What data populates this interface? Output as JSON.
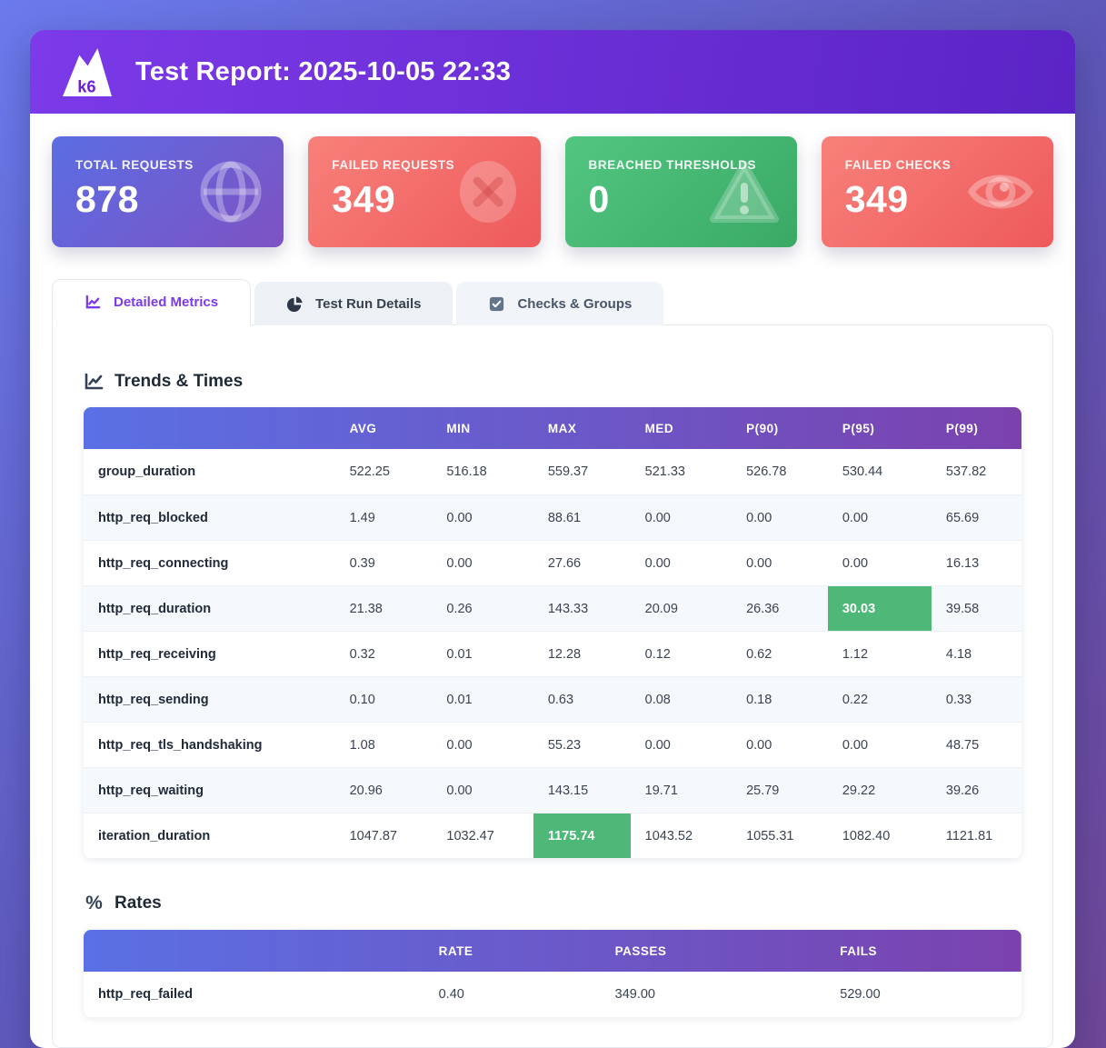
{
  "header": {
    "logo_text": "k6",
    "title": "Test Report: 2025-10-05 22:33"
  },
  "stats": [
    {
      "label": "TOTAL REQUESTS",
      "value": "878",
      "icon": "globe-icon",
      "gradient": [
        "#5b6de3",
        "#7e52c3"
      ]
    },
    {
      "label": "FAILED REQUESTS",
      "value": "349",
      "icon": "x-circle-icon",
      "gradient": [
        "#f8807a",
        "#ee5a5c"
      ]
    },
    {
      "label": "BREACHED THRESHOLDS",
      "value": "0",
      "icon": "warning-triangle-icon",
      "gradient": [
        "#52c681",
        "#3aa966"
      ]
    },
    {
      "label": "FAILED CHECKS",
      "value": "349",
      "icon": "eye-icon",
      "gradient": [
        "#f8807a",
        "#ee5a5c"
      ]
    }
  ],
  "tabs": [
    {
      "label": "Detailed Metrics",
      "icon": "chart-trend-icon",
      "active": true
    },
    {
      "label": "Test Run Details",
      "icon": "pie-chart-icon",
      "active": false
    },
    {
      "label": "Checks & Groups",
      "icon": "check-square-icon",
      "active": false
    }
  ],
  "trends": {
    "title": "Trends & Times",
    "icon": "chart-line-icon",
    "columns": [
      "AVG",
      "MIN",
      "MAX",
      "MED",
      "P(90)",
      "P(95)",
      "P(99)"
    ],
    "rows": [
      {
        "name": "group_duration",
        "values": [
          "522.25",
          "516.18",
          "559.37",
          "521.33",
          "526.78",
          "530.44",
          "537.82"
        ],
        "highlight": null
      },
      {
        "name": "http_req_blocked",
        "values": [
          "1.49",
          "0.00",
          "88.61",
          "0.00",
          "0.00",
          "0.00",
          "65.69"
        ],
        "highlight": null
      },
      {
        "name": "http_req_connecting",
        "values": [
          "0.39",
          "0.00",
          "27.66",
          "0.00",
          "0.00",
          "0.00",
          "16.13"
        ],
        "highlight": null
      },
      {
        "name": "http_req_duration",
        "values": [
          "21.38",
          "0.26",
          "143.33",
          "20.09",
          "26.36",
          "30.03",
          "39.58"
        ],
        "highlight": 5
      },
      {
        "name": "http_req_receiving",
        "values": [
          "0.32",
          "0.01",
          "12.28",
          "0.12",
          "0.62",
          "1.12",
          "4.18"
        ],
        "highlight": null
      },
      {
        "name": "http_req_sending",
        "values": [
          "0.10",
          "0.01",
          "0.63",
          "0.08",
          "0.18",
          "0.22",
          "0.33"
        ],
        "highlight": null
      },
      {
        "name": "http_req_tls_handshaking",
        "values": [
          "1.08",
          "0.00",
          "55.23",
          "0.00",
          "0.00",
          "0.00",
          "48.75"
        ],
        "highlight": null
      },
      {
        "name": "http_req_waiting",
        "values": [
          "20.96",
          "0.00",
          "143.15",
          "19.71",
          "25.79",
          "29.22",
          "39.26"
        ],
        "highlight": null
      },
      {
        "name": "iteration_duration",
        "values": [
          "1047.87",
          "1032.47",
          "1175.74",
          "1043.52",
          "1055.31",
          "1082.40",
          "1121.81"
        ],
        "highlight": 2
      }
    ]
  },
  "rates": {
    "title": "Rates",
    "icon": "percent-icon",
    "columns": [
      "RATE",
      "PASSES",
      "FAILS"
    ],
    "rows": [
      {
        "name": "http_req_failed",
        "values": [
          "0.40",
          "349.00",
          "529.00"
        ],
        "highlight": null
      }
    ]
  },
  "colors": {
    "page_gradient": [
      "#6b7aec",
      "#5e57b9",
      "#6f4798"
    ],
    "header_gradient": [
      "#7c3ae8",
      "#5b24c5"
    ],
    "table_header_gradient": [
      "#5a70e4",
      "#7b42ae"
    ],
    "highlight_green": "#4db877",
    "active_tab_accent": "#7c3aed"
  }
}
